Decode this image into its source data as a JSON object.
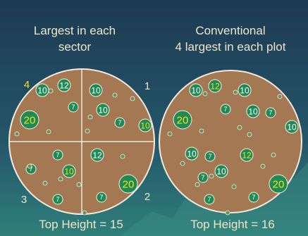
{
  "colors": {
    "background_top": "#1f3c55",
    "background_bottom": "#2f7a78",
    "plot_fill": "#a57a55",
    "plot_stroke": "#f2ece2",
    "tree_fill": "#1f8a56",
    "tree_stroke": "#f5efe2",
    "text_light": "#f2ebd6",
    "text_yellow": "#f3e11c",
    "number_white": "#ffffff"
  },
  "left_panel": {
    "title_line1": "Largest in each",
    "title_line2": "sector",
    "sector_labels": [
      "4",
      "1",
      "3",
      "2"
    ],
    "top_height_label": "Top Height = 15",
    "trees": [
      {
        "label": "10",
        "size": "medium",
        "highlight": false
      },
      {
        "label": "12",
        "size": "medium",
        "highlight": false
      },
      {
        "label": "20",
        "size": "large",
        "highlight": true
      },
      {
        "label": "7",
        "size": "small",
        "highlight": false
      },
      {
        "label": "10",
        "size": "medium",
        "highlight": false
      },
      {
        "label": "10",
        "size": "medium",
        "highlight": false
      },
      {
        "label": "7",
        "size": "small",
        "highlight": false
      },
      {
        "label": "10",
        "size": "medium",
        "highlight": true
      },
      {
        "label": "12",
        "size": "medium",
        "highlight": false
      },
      {
        "label": "7",
        "size": "small",
        "highlight": false
      },
      {
        "label": "10",
        "size": "medium",
        "highlight": true
      },
      {
        "label": "20",
        "size": "large",
        "highlight": true
      },
      {
        "label": "7",
        "size": "small",
        "highlight": false
      },
      {
        "label": "7",
        "size": "small",
        "highlight": false
      },
      {
        "label": "7",
        "size": "small",
        "highlight": false
      }
    ]
  },
  "right_panel": {
    "title_line1": "Conventional",
    "title_line2": "4 largest in each plot",
    "top_height_label": "Top Height = 16",
    "trees": [
      {
        "label": "12",
        "size": "medium",
        "highlight": true
      },
      {
        "label": "10",
        "size": "medium",
        "highlight": false
      },
      {
        "label": "20",
        "size": "large",
        "highlight": true
      },
      {
        "label": "10",
        "size": "medium",
        "highlight": false
      },
      {
        "label": "10",
        "size": "medium",
        "highlight": false
      },
      {
        "label": "7",
        "size": "small",
        "highlight": false
      },
      {
        "label": "7",
        "size": "small",
        "highlight": false
      },
      {
        "label": "12",
        "size": "medium",
        "highlight": true
      },
      {
        "label": "10",
        "size": "medium",
        "highlight": false
      },
      {
        "label": "7",
        "size": "small",
        "highlight": false
      },
      {
        "label": "10",
        "size": "medium",
        "highlight": false
      },
      {
        "label": "20",
        "size": "large",
        "highlight": true
      },
      {
        "label": "7",
        "size": "small",
        "highlight": false
      },
      {
        "label": "7",
        "size": "small",
        "highlight": false
      },
      {
        "label": "7",
        "size": "small",
        "highlight": false
      },
      {
        "label": "10",
        "size": "medium",
        "highlight": false
      }
    ]
  }
}
